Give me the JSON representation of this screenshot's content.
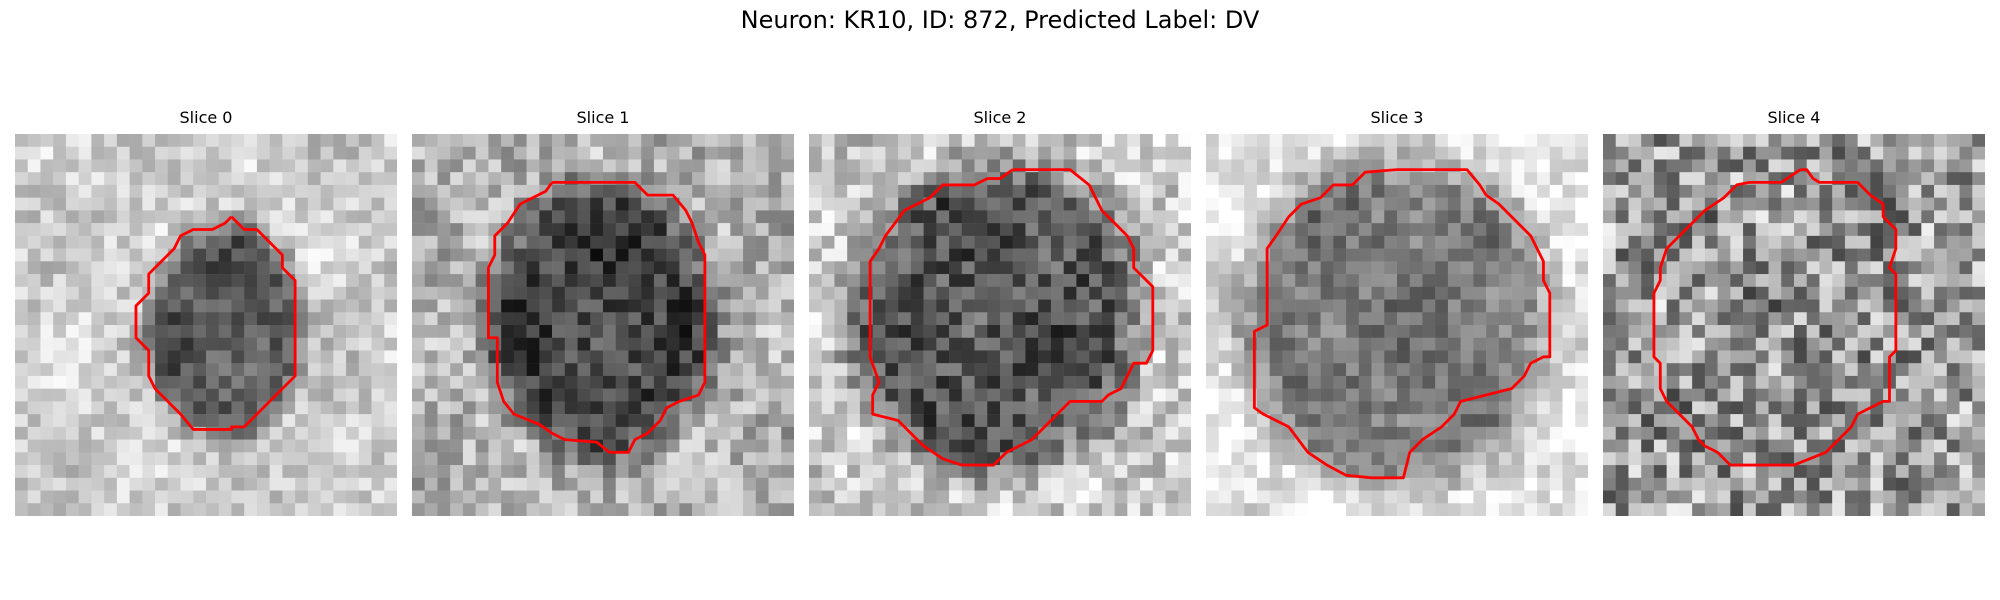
{
  "figure": {
    "title": "Neuron: KR10, ID: 872, Predicted Label: DV",
    "outline_color": "#ff0000"
  },
  "slices": [
    {
      "title": "Slice 0"
    },
    {
      "title": "Slice 1"
    },
    {
      "title": "Slice 2"
    },
    {
      "title": "Slice 3"
    },
    {
      "title": "Slice 4"
    }
  ]
}
